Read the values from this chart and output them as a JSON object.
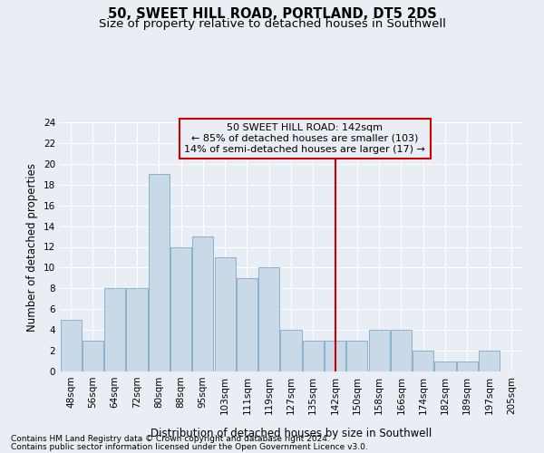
{
  "title": "50, SWEET HILL ROAD, PORTLAND, DT5 2DS",
  "subtitle": "Size of property relative to detached houses in Southwell",
  "xlabel": "Distribution of detached houses by size in Southwell",
  "ylabel": "Number of detached properties",
  "categories": [
    "48sqm",
    "56sqm",
    "64sqm",
    "72sqm",
    "80sqm",
    "88sqm",
    "95sqm",
    "103sqm",
    "111sqm",
    "119sqm",
    "127sqm",
    "135sqm",
    "142sqm",
    "150sqm",
    "158sqm",
    "166sqm",
    "174sqm",
    "182sqm",
    "189sqm",
    "197sqm",
    "205sqm"
  ],
  "values": [
    5,
    3,
    8,
    8,
    19,
    12,
    13,
    11,
    9,
    10,
    4,
    3,
    3,
    3,
    4,
    4,
    2,
    1,
    1,
    2,
    0
  ],
  "bar_color": "#c9d9e8",
  "bar_edge_color": "#7aaac8",
  "marker_index": 12,
  "marker_line_color": "#cc0000",
  "annotation_text": "50 SWEET HILL ROAD: 142sqm\n← 85% of detached houses are smaller (103)\n14% of semi-detached houses are larger (17) →",
  "annotation_box_color": "#cc0000",
  "ylim": [
    0,
    24
  ],
  "yticks": [
    0,
    2,
    4,
    6,
    8,
    10,
    12,
    14,
    16,
    18,
    20,
    22,
    24
  ],
  "footnote1": "Contains HM Land Registry data © Crown copyright and database right 2024.",
  "footnote2": "Contains public sector information licensed under the Open Government Licence v3.0.",
  "background_color": "#e8eef4",
  "grid_color": "#ffffff",
  "title_fontsize": 10.5,
  "subtitle_fontsize": 9.5,
  "axis_label_fontsize": 8.5,
  "tick_fontsize": 7.5,
  "annotation_fontsize": 8,
  "footnote_fontsize": 6.5
}
